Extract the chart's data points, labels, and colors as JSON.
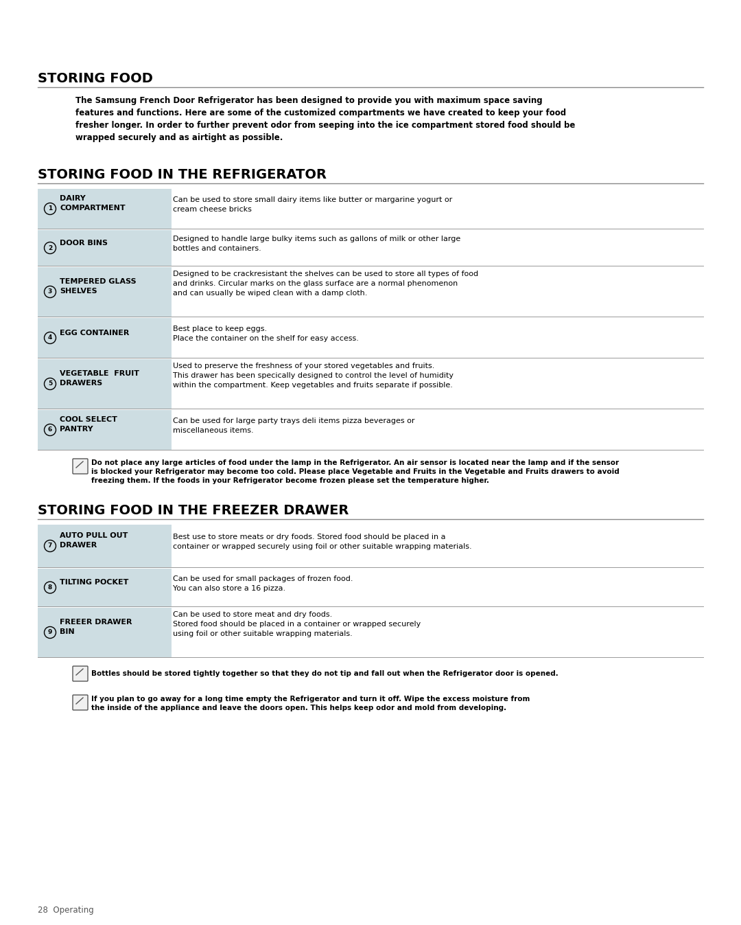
{
  "bg_color": "#ffffff",
  "section1_title": "STORING FOOD",
  "section1_body": "The Samsung French Door Refrigerator has been designed to provide you with maximum space saving\nfeatures and functions. Here are some of the customized compartments we have created to keep your food\nfresher longer. In order to further prevent odor from seeping into the ice compartment stored food should be\nwrapped securely and as airtight as possible.",
  "section2_title": "STORING FOOD IN THE REFRIGERATOR",
  "section3_title": "STORING FOOD IN THE FREEZER DRAWER",
  "row_bg_color": "#cddde2",
  "divider_color": "#999999",
  "fridge_rows": [
    {
      "num": "1",
      "label": "DAIRY\nCOMPARTMENT",
      "desc": "Can be used to store small dairy items like butter or margarine yogurt or\ncream cheese bricks"
    },
    {
      "num": "2",
      "label": "DOOR BINS",
      "desc": "Designed to handle large bulky items such as gallons of milk or other large\nbottles and containers."
    },
    {
      "num": "3",
      "label": "TEMPERED GLASS\nSHELVES",
      "desc": "Designed to be crackresistant the shelves can be used to store all types of food\nand drinks. Circular marks on the glass surface are a normal phenomenon\nand can usually be wiped clean with a damp cloth."
    },
    {
      "num": "4",
      "label": "EGG CONTAINER",
      "desc": "Best place to keep eggs.\nPlace the container on the shelf for easy access."
    },
    {
      "num": "5",
      "label": "VEGETABLE  FRUIT\nDRAWERS",
      "desc": "Used to preserve the freshness of your stored vegetables and fruits.\nThis drawer has been specically designed to control the level of humidity\nwithin the compartment. Keep vegetables and fruits separate if possible."
    },
    {
      "num": "6",
      "label": "COOL SELECT\nPANTRY",
      "desc": "Can be used for large party trays deli items pizza beverages or\nmiscellaneous items."
    }
  ],
  "fridge_note": "Do not place any large articles of food under the lamp in the Refrigerator. An air sensor is located near the lamp and if the sensor\nis blocked your Refrigerator may become too cold. Please place Vegetable and Fruits in the Vegetable and Fruits drawers to avoid\nfreezing them. If the foods in your Refrigerator become frozen please set the temperature higher.",
  "freezer_rows": [
    {
      "num": "7",
      "label": "AUTO PULL OUT\nDRAWER",
      "desc": "Best use to store meats or dry foods. Stored food should be placed in a\ncontainer or wrapped securely using foil or other suitable wrapping materials."
    },
    {
      "num": "8",
      "label": "TILTING POCKET",
      "desc": "Can be used for small packages of frozen food.\nYou can also store a 16 pizza."
    },
    {
      "num": "9",
      "label": "FREEER DRAWER\nBIN",
      "desc": "Can be used to store meat and dry foods.\nStored food should be placed in a container or wrapped securely\nusing foil or other suitable wrapping materials."
    }
  ],
  "freezer_note1": "Bottles should be stored tightly together so that they do not tip and fall out when the Refrigerator door is opened.",
  "freezer_note2": "If you plan to go away for a long time empty the Refrigerator and turn it off. Wipe the excess moisture from\nthe inside of the appliance and leave the doors open. This helps keep odor and mold from developing.",
  "footer_text": "28  Operating"
}
